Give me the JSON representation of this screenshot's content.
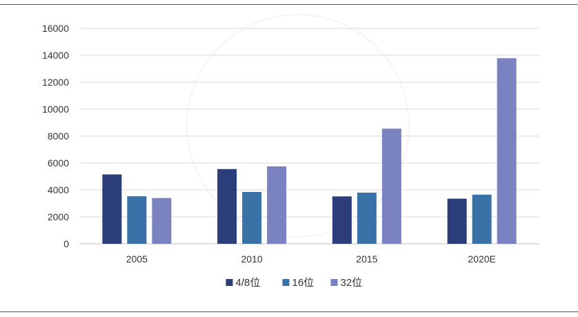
{
  "chart_data": {
    "type": "bar",
    "categories": [
      "2005",
      "2010",
      "2015",
      "2020E"
    ],
    "series": [
      {
        "name": "4/8位",
        "values": [
          5150,
          5550,
          3520,
          3350
        ],
        "color": "#2c3e7a"
      },
      {
        "name": "16位",
        "values": [
          3530,
          3850,
          3800,
          3650
        ],
        "color": "#3a72a8"
      },
      {
        "name": "32位",
        "values": [
          3400,
          5750,
          8550,
          13780
        ],
        "color": "#7b82c2"
      }
    ],
    "ylim": [
      0,
      16000
    ],
    "yticks": [
      0,
      2000,
      4000,
      6000,
      8000,
      10000,
      12000,
      14000,
      16000
    ],
    "grid": true,
    "legend": "bottom-center"
  }
}
